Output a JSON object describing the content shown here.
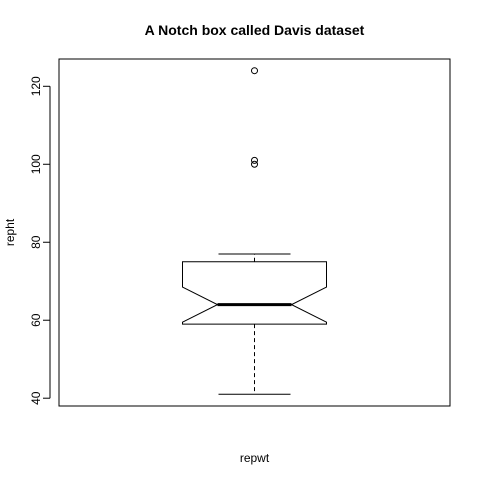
{
  "chart_data": {
    "type": "boxplot",
    "notched": true,
    "title": "A Notch box called Davis dataset",
    "xlabel": "repwt",
    "ylabel": "repht",
    "ylim": [
      38,
      127
    ],
    "yticks": [
      40,
      60,
      80,
      100,
      120
    ],
    "grid": false,
    "legend": "none",
    "box": {
      "whisker_low": 41,
      "q1": 59,
      "median": 64,
      "q3": 75,
      "whisker_high": 77,
      "notch_low": 59.5,
      "notch_high": 68.5
    },
    "outliers": [
      100,
      101,
      124
    ]
  }
}
